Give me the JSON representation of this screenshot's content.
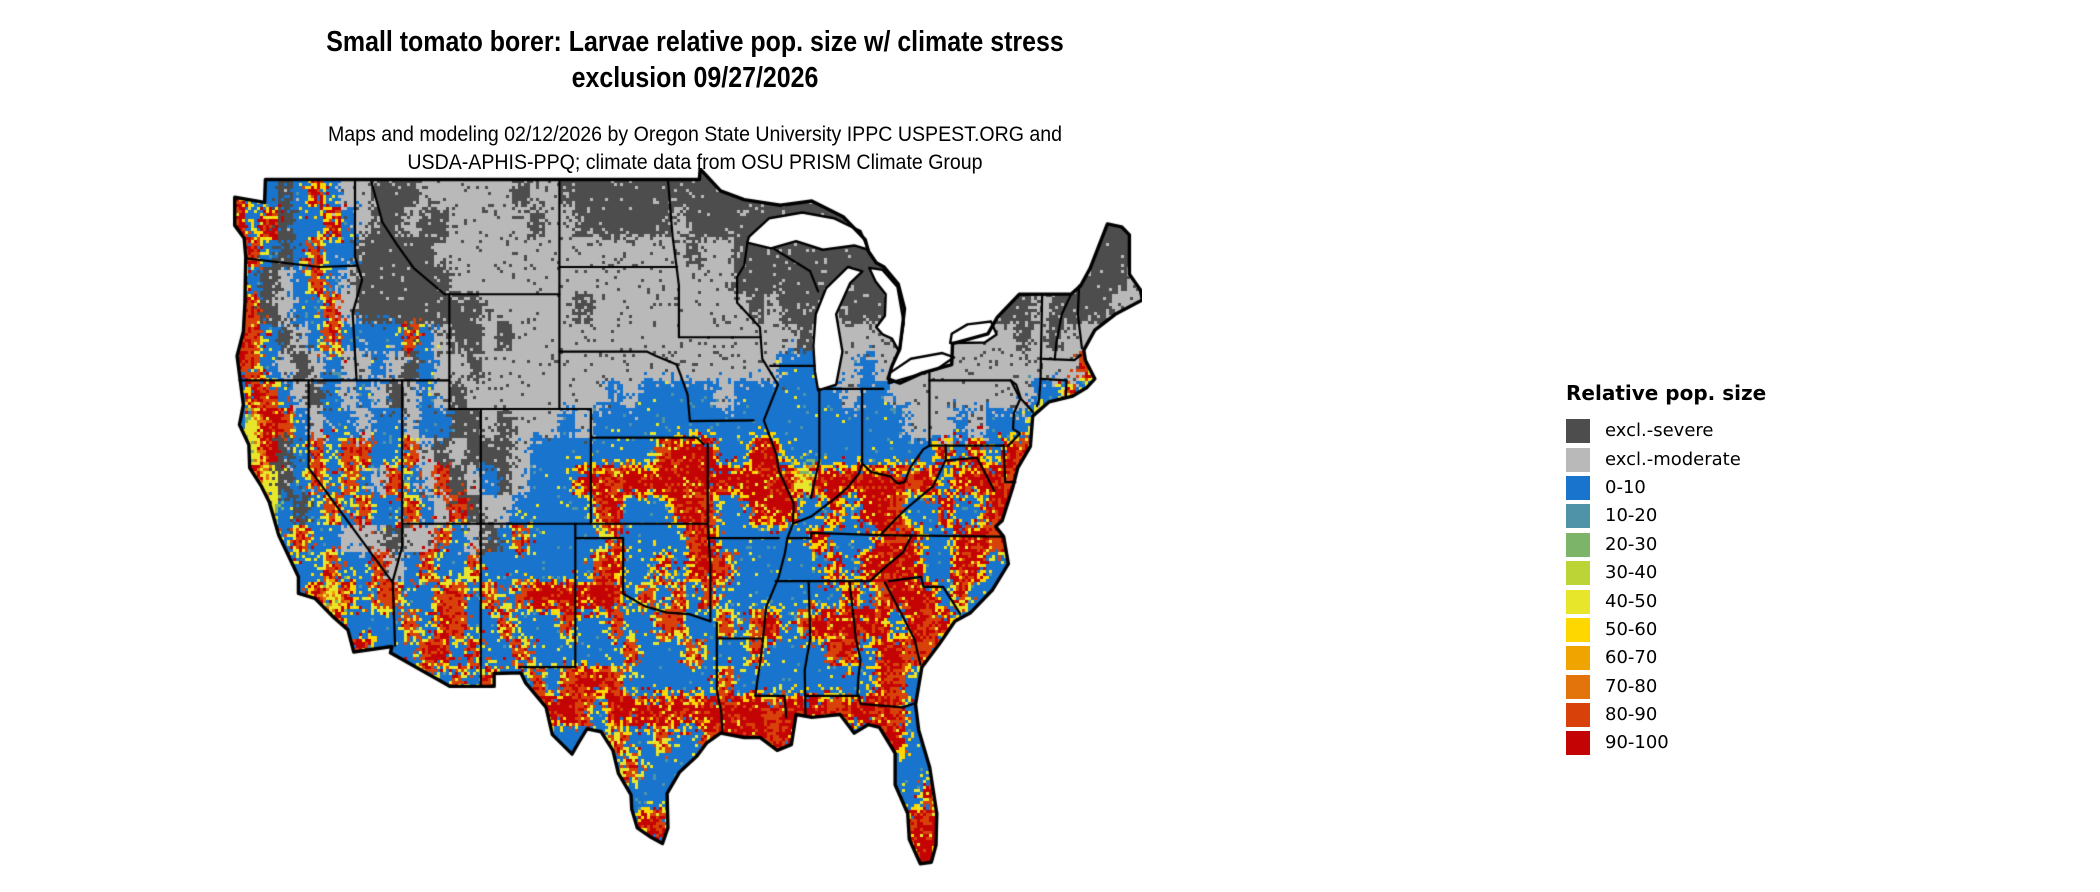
{
  "title": {
    "line1": "Small tomato borer: Larvae relative pop. size w/ climate stress",
    "line2": "exclusion 09/27/2026"
  },
  "subtitle": {
    "line1": "Maps and modeling 02/12/2026 by Oregon State University IPPC USPEST.ORG and",
    "line2": "USDA-APHIS-PPQ; climate data from OSU PRISM Climate Group"
  },
  "legend": {
    "title": "Relative pop. size"
  },
  "chart_data": {
    "type": "heatmap",
    "subtype": "us-conus-raster-map",
    "legend_title": "Relative pop. size",
    "classes": [
      {
        "code": "S",
        "label": "excl.-severe",
        "color": "#4d4d4d"
      },
      {
        "code": "M",
        "label": "excl.-moderate",
        "color": "#b9b9b9"
      },
      {
        "code": "B",
        "label": "0-10",
        "color": "#1874cd"
      },
      {
        "code": "T",
        "label": "10-20",
        "color": "#4f93a8"
      },
      {
        "code": "G",
        "label": "20-30",
        "color": "#7cb569"
      },
      {
        "code": "L",
        "label": "30-40",
        "color": "#bcd435"
      },
      {
        "code": "Y",
        "label": "40-50",
        "color": "#e8e62b"
      },
      {
        "code": "D",
        "label": "50-60",
        "color": "#ffd700"
      },
      {
        "code": "O",
        "label": "60-70",
        "color": "#efa400"
      },
      {
        "code": "P",
        "label": "70-80",
        "color": "#e3730b"
      },
      {
        "code": "R",
        "label": "80-90",
        "color": "#d8420a"
      },
      {
        "code": "C",
        "label": "90-100",
        "color": "#c40404"
      }
    ],
    "lon_range": [
      -125,
      -67
    ],
    "lat_range": [
      25,
      49
    ],
    "cell_degrees": 1,
    "grid_rows": [
      [
        "CBBSBCBMMS",
        "SSMMMMMMSM",
        "MSSSSSSSSS",
        "SSSSSSSSSS",
        "SSSSSSSSSS",
        "SSSSSSSS"
      ],
      [
        "CBCSBBCBMS",
        "SMSSMMMMMS",
        "MMSSSSSSMS",
        "SSSSSSSSSS",
        "SSSSSSSSSS",
        "SSSSSSSS"
      ],
      [
        "CRBSBRBBSS",
        "SSSMMMMMMM",
        "MMMMMMMMMS",
        "MMSSSSSSSS",
        "SSSSSSSSSS",
        "SSSSSSSS"
      ],
      [
        "CBSMBRBMSS",
        "SSSSMMMMMM",
        "MMMMMMMMMM",
        "MMSSSSSSSS",
        "SSSSSSSSSS",
        "SSSSSSSM"
      ],
      [
        "CRSMBBRMSS",
        "SSSSSSMMMM",
        "MMSMMMMMMM",
        "MMMSMSSSMS",
        "SSSSMMSSSS",
        "SMSSSSMM"
      ],
      [
        "CRBSMBRBBB",
        "BRBMSSMSMM",
        "MMMMMMMMMM",
        "MMMMMMSMMM",
        "MMSMMMMMMM",
        "SMSMMMRM"
      ],
      [
        "CRBMSMBMMB",
        "MSBMMSMMMM",
        "MMMMMMMMMM",
        "MMMMMBBBMM",
        "BMMMMMMMMM",
        "MMMMRBMM"
      ],
      [
        "BCRBMSBMBM",
        "SMBMSMMMMM",
        "MMMMBMBBBB",
        "BMBBBBBBBM",
        "BBMMMMMMMM",
        "MBBRBBMM"
      ],
      [
        "BYCRBMBBMB",
        "BMBBSSMSMM",
        "MBMBBBBBBB",
        "BBBBBBBBBB",
        "BBBMMMBMBB",
        "BRRBBBMM"
      ],
      [
        "BYCSBRBRRB",
        "BRMSMSSSMB",
        "BBBBBBBRCC",
        "CBBCCBBBBB",
        "BBBBBCBCBC",
        "RBBBBBMM"
      ],
      [
        "BCYSBRBRBM",
        "RBMRSMBSMB",
        "BBCCRCCCCC",
        "CCCCCCYCCC",
        "CCCRCBCCCR",
        "CBBBBBMM"
      ],
      [
        "CRYBSBRBRB",
        "BRBMRSMMBB",
        "BBBRCBBBCC",
        "RBBCCCBBCB",
        "CCRBBCBBCC",
        "RBBBBBMM"
      ],
      [
        "CCRBRBBMMM",
        "SMMRBMSBRB",
        "BBBBRBBBBR",
        "CBBBBBBCBB",
        "BCRCBBCCRR",
        "BBBBBBMM"
      ],
      [
        "BCYCBBRBBR",
        "MBRBBRBBBB",
        "BBBRCBBCBC",
        "CRBBBBBBCB",
        "CCCCBBCCBB",
        "BBBBBBBB"
      ],
      [
        "BBBBBCYCBR",
        "RBBRRBRBRC",
        "CCCCCBRBRB",
        "RBBBBBBBBC",
        "BRCCCBRBBB",
        "BBBBBBBB"
      ],
      [
        "BBBBBBCBBB",
        "BRBCRBBRBB",
        "BRBBRBBRRB",
        "BRBRCBRCCC",
        "CCBCRCBBBB",
        "BBBBBBBB"
      ],
      [
        "BBBBBBBCCB",
        "BBRCBRBBRB",
        "BBBBBRBBBR",
        "BBBRBBBBRC",
        "BCCRRBBBBB",
        "BBBBBBBB"
      ],
      [
        "BBBBBBBBBB",
        "RBRBRBRBBR",
        "BRCCRBBBBB",
        "BRBBBBBBBB",
        "BCRBBBBBBB",
        "BBBBBBBB"
      ],
      [
        "BBBBBBBBBB",
        "BBBBBBBBBR",
        "CCRBCCCCCC",
        "CCCCRCCCRC",
        "CCRBBBBBBB",
        "BBBBBBBB"
      ],
      [
        "BBBBBBBBBB",
        "BBBBBBBBBB",
        "BBBBRBBRBB",
        "RCCCRCBBBB",
        "BCCBBBBBBB",
        "BBBBBBBB"
      ],
      [
        "BBBBBBBBBB",
        "BBBBBBBBBB",
        "BBBBBRBBBB",
        "BBBBBBBBBB",
        "BBBBBBBBBB",
        "BBBBBBBB"
      ],
      [
        "BBBBBBBBBB",
        "BBBBBBBBBB",
        "BBBBBBBBBB",
        "BBBBBBBBBB",
        "BBBBRBBBBB",
        "BBBBBBBB"
      ],
      [
        "BBBBBBBBBB",
        "BBBBBBBBBB",
        "BBBBBBCRBB",
        "BBBBBBBBBB",
        "BBCCRBBBBB",
        "BBBBBBBB"
      ],
      [
        "BBBBBBBBBB",
        "BBBBBBBBBB",
        "BBBBBBBCBB",
        "BBBBBBBBBB",
        "BBBCCBBBBB",
        "BBBBBBBB"
      ]
    ]
  }
}
